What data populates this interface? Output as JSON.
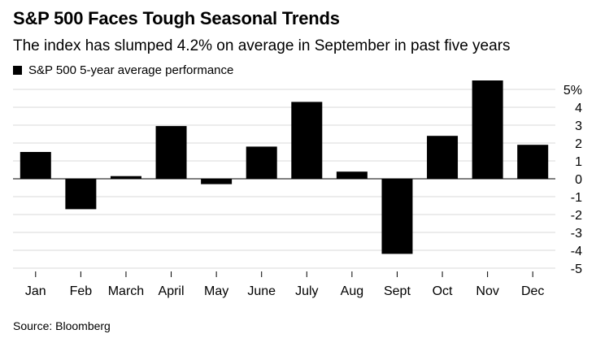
{
  "header": {
    "title": "S&P 500 Faces Tough Seasonal Trends",
    "subtitle": "The index has slumped 4.2% on average in September in past five years"
  },
  "footer": {
    "source": "Source: Bloomberg"
  },
  "colors": {
    "bar": "#000000",
    "grid": "#d9d9d9",
    "axis": "#000000",
    "background": "#ffffff"
  },
  "chart_data": {
    "type": "bar",
    "title": "S&P 500 Faces Tough Seasonal Trends",
    "subtitle": "The index has slumped 4.2% on average in September in past five years",
    "categories": [
      "Jan",
      "Feb",
      "March",
      "April",
      "May",
      "June",
      "July",
      "Aug",
      "Sept",
      "Oct",
      "Nov",
      "Dec"
    ],
    "series": [
      {
        "name": "S&P 500 5-year average performance",
        "values": [
          1.5,
          -1.7,
          0.15,
          2.95,
          -0.3,
          1.8,
          4.3,
          0.4,
          -4.2,
          2.4,
          5.5,
          1.9
        ]
      }
    ],
    "ylim": [
      -5,
      5
    ],
    "yticks": [
      5,
      4,
      3,
      2,
      1,
      0,
      -1,
      -2,
      -3,
      -4,
      -5
    ],
    "ytick_labels": [
      "5%",
      "4",
      "3",
      "2",
      "1",
      "0",
      "-1",
      "-2",
      "-3",
      "-4",
      "-5"
    ],
    "y_axis_position": "right",
    "grid": true,
    "legend": "top-left",
    "xlabel": "",
    "ylabel": ""
  }
}
